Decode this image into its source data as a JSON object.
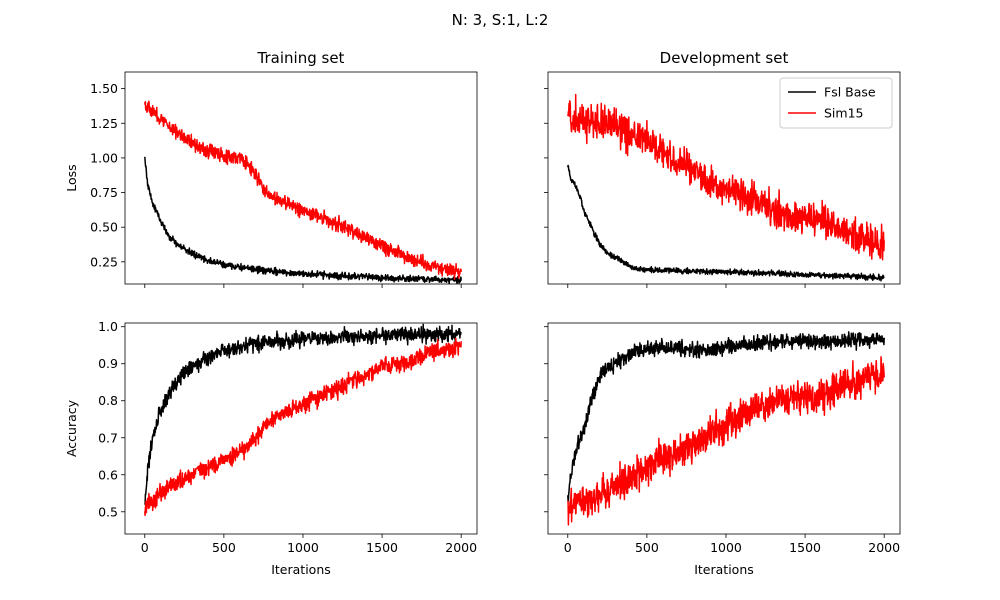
{
  "suptitle": "N: 3, S:1, L:2",
  "legend": {
    "placement": "upper right of Development set loss panel",
    "entries": [
      "Fsl Base",
      "Sim15"
    ]
  },
  "colors": {
    "Fsl Base": "#000000",
    "Sim15": "#ff0000"
  },
  "chart_data": [
    {
      "type": "line",
      "title": "Training set",
      "xlabel": "",
      "ylabel": "Loss",
      "xlim": [
        -125,
        2100
      ],
      "ylim": [
        0.09,
        1.62
      ],
      "xticks": [
        0,
        500,
        1000,
        1500,
        2000
      ],
      "xticklabels_shown": false,
      "yticks": [
        0.25,
        0.5,
        0.75,
        1.0,
        1.25,
        1.5
      ],
      "yticklabels": [
        "0.25",
        "0.50",
        "0.75",
        "1.00",
        "1.25",
        "1.50"
      ],
      "series": [
        {
          "name": "Fsl Base",
          "noise": 0.012,
          "x": [
            0,
            20,
            50,
            80,
            120,
            160,
            200,
            300,
            400,
            500,
            600,
            700,
            800,
            1000,
            1200,
            1400,
            1600,
            1800,
            2000
          ],
          "y": [
            1.0,
            0.8,
            0.67,
            0.6,
            0.5,
            0.43,
            0.38,
            0.31,
            0.26,
            0.23,
            0.21,
            0.195,
            0.18,
            0.165,
            0.15,
            0.14,
            0.13,
            0.125,
            0.12
          ]
        },
        {
          "name": "Sim15",
          "noise": 0.025,
          "x": [
            0,
            20,
            100,
            200,
            300,
            400,
            500,
            600,
            650,
            700,
            750,
            800,
            900,
            1000,
            1100,
            1200,
            1300,
            1400,
            1500,
            1600,
            1700,
            1800,
            1900,
            2000
          ],
          "y": [
            1.4,
            1.37,
            1.28,
            1.19,
            1.11,
            1.05,
            1.02,
            1.0,
            0.95,
            0.88,
            0.78,
            0.72,
            0.67,
            0.62,
            0.58,
            0.53,
            0.48,
            0.42,
            0.37,
            0.31,
            0.27,
            0.23,
            0.2,
            0.17
          ]
        }
      ]
    },
    {
      "type": "line",
      "title": "Development set",
      "xlabel": "",
      "ylabel": "",
      "xlim": [
        -125,
        2100
      ],
      "ylim": [
        0.09,
        1.62
      ],
      "xticks": [
        0,
        500,
        1000,
        1500,
        2000
      ],
      "xticklabels_shown": false,
      "yticks": [
        0.25,
        0.5,
        0.75,
        1.0,
        1.25,
        1.5
      ],
      "yticklabels_shown": false,
      "series": [
        {
          "name": "Fsl Base",
          "noise": 0.01,
          "x": [
            0,
            20,
            50,
            80,
            100,
            150,
            200,
            250,
            300,
            350,
            400,
            500,
            700,
            900,
            1100,
            1300,
            1500,
            1700,
            1900,
            2000
          ],
          "y": [
            0.95,
            0.85,
            0.8,
            0.72,
            0.62,
            0.5,
            0.38,
            0.31,
            0.28,
            0.25,
            0.21,
            0.19,
            0.185,
            0.18,
            0.175,
            0.165,
            0.155,
            0.15,
            0.14,
            0.135
          ]
        },
        {
          "name": "Sim15",
          "noise": 0.06,
          "x": [
            0,
            100,
            200,
            300,
            400,
            500,
            600,
            700,
            800,
            900,
            1000,
            1100,
            1200,
            1300,
            1400,
            1500,
            1600,
            1700,
            1800,
            1900,
            2000
          ],
          "y": [
            1.32,
            1.27,
            1.25,
            1.22,
            1.17,
            1.12,
            1.05,
            0.98,
            0.92,
            0.8,
            0.78,
            0.75,
            0.68,
            0.63,
            0.58,
            0.56,
            0.55,
            0.5,
            0.43,
            0.4,
            0.37
          ]
        }
      ]
    },
    {
      "type": "line",
      "title": "",
      "xlabel": "Iterations",
      "ylabel": "Accuracy",
      "xlim": [
        -125,
        2100
      ],
      "ylim": [
        0.44,
        1.01
      ],
      "xticks": [
        0,
        500,
        1000,
        1500,
        2000
      ],
      "xticklabels": [
        "0",
        "500",
        "1000",
        "1500",
        "2000"
      ],
      "yticks": [
        0.5,
        0.6,
        0.7,
        0.8,
        0.9,
        1.0
      ],
      "yticklabels": [
        "0.5",
        "0.6",
        "0.7",
        "0.8",
        "0.9",
        "1.0"
      ],
      "series": [
        {
          "name": "Fsl Base",
          "noise": 0.01,
          "x": [
            0,
            20,
            50,
            100,
            150,
            200,
            250,
            300,
            400,
            500,
            600,
            700,
            800,
            1000,
            1200,
            1400,
            1600,
            1800,
            2000
          ],
          "y": [
            0.52,
            0.62,
            0.7,
            0.77,
            0.82,
            0.85,
            0.88,
            0.89,
            0.92,
            0.935,
            0.945,
            0.955,
            0.96,
            0.965,
            0.97,
            0.975,
            0.978,
            0.98,
            0.982
          ]
        },
        {
          "name": "Sim15",
          "noise": 0.012,
          "x": [
            0,
            50,
            100,
            200,
            300,
            400,
            500,
            600,
            700,
            800,
            900,
            1000,
            1100,
            1200,
            1300,
            1400,
            1500,
            1600,
            1700,
            1800,
            1900,
            2000
          ],
          "y": [
            0.51,
            0.53,
            0.55,
            0.58,
            0.6,
            0.62,
            0.64,
            0.66,
            0.7,
            0.75,
            0.77,
            0.79,
            0.81,
            0.83,
            0.85,
            0.87,
            0.89,
            0.9,
            0.91,
            0.93,
            0.94,
            0.95
          ]
        }
      ]
    },
    {
      "type": "line",
      "title": "",
      "xlabel": "Iterations",
      "ylabel": "",
      "xlim": [
        -125,
        2100
      ],
      "ylim": [
        0.44,
        1.01
      ],
      "xticks": [
        0,
        500,
        1000,
        1500,
        2000
      ],
      "xticklabels": [
        "0",
        "500",
        "1000",
        "1500",
        "2000"
      ],
      "yticks": [
        0.5,
        0.6,
        0.7,
        0.8,
        0.9,
        1.0
      ],
      "yticklabels_shown": false,
      "series": [
        {
          "name": "Fsl Base",
          "noise": 0.01,
          "x": [
            0,
            20,
            50,
            100,
            150,
            200,
            250,
            300,
            400,
            500,
            600,
            700,
            800,
            1000,
            1200,
            1400,
            1600,
            1800,
            2000
          ],
          "y": [
            0.53,
            0.6,
            0.66,
            0.72,
            0.8,
            0.87,
            0.89,
            0.9,
            0.93,
            0.94,
            0.945,
            0.94,
            0.935,
            0.945,
            0.955,
            0.96,
            0.96,
            0.963,
            0.967
          ]
        },
        {
          "name": "Sim15",
          "noise": 0.022,
          "x": [
            0,
            100,
            200,
            300,
            400,
            500,
            600,
            700,
            800,
            900,
            1000,
            1100,
            1200,
            1300,
            1400,
            1500,
            1600,
            1700,
            1800,
            1900,
            2000
          ],
          "y": [
            0.51,
            0.53,
            0.55,
            0.57,
            0.59,
            0.62,
            0.65,
            0.66,
            0.68,
            0.71,
            0.73,
            0.76,
            0.78,
            0.79,
            0.8,
            0.81,
            0.81,
            0.83,
            0.85,
            0.87,
            0.88
          ]
        }
      ]
    }
  ]
}
